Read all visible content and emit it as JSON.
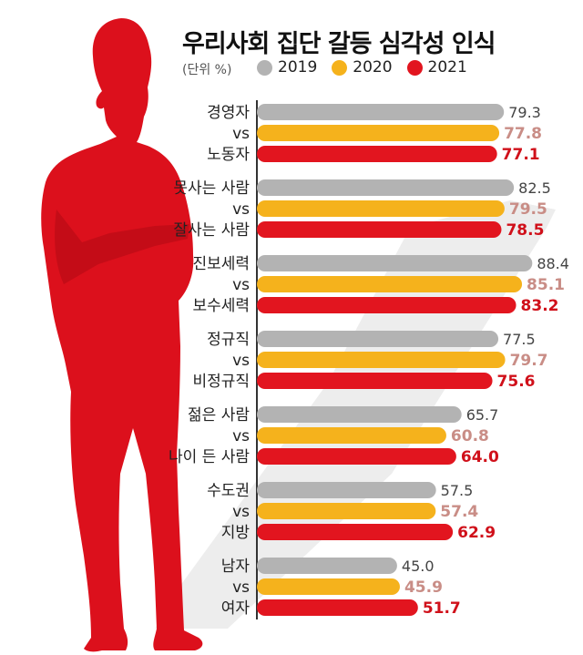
{
  "chart_data": {
    "type": "bar",
    "orientation": "horizontal",
    "title": "우리사회 집단 갈등 심각성 인식",
    "unit": "(단위 %)",
    "legend": [
      "2019",
      "2020",
      "2021"
    ],
    "colors": [
      "#b3b3b3",
      "#f5b21c",
      "#e2151f"
    ],
    "label_colors": [
      "#444444",
      "#c98d86",
      "#d0101a"
    ],
    "connector": "vs",
    "groups": [
      {
        "top": "경영자",
        "bottom": "노동자",
        "values": [
          79.3,
          77.8,
          77.1
        ]
      },
      {
        "top": "못사는 사람",
        "bottom": "잘사는 사람",
        "values": [
          82.5,
          79.5,
          78.5
        ]
      },
      {
        "top": "진보세력",
        "bottom": "보수세력",
        "values": [
          88.4,
          85.1,
          83.2
        ]
      },
      {
        "top": "정규직",
        "bottom": "비정규직",
        "values": [
          77.5,
          79.7,
          75.6
        ]
      },
      {
        "top": "젊은 사람",
        "bottom": "나이 든 사람",
        "values": [
          65.7,
          60.8,
          64.0
        ]
      },
      {
        "top": "수도권",
        "bottom": "지방",
        "values": [
          57.5,
          57.4,
          62.9
        ]
      },
      {
        "top": "남자",
        "bottom": "여자",
        "values": [
          45.0,
          45.9,
          51.7
        ]
      }
    ]
  }
}
